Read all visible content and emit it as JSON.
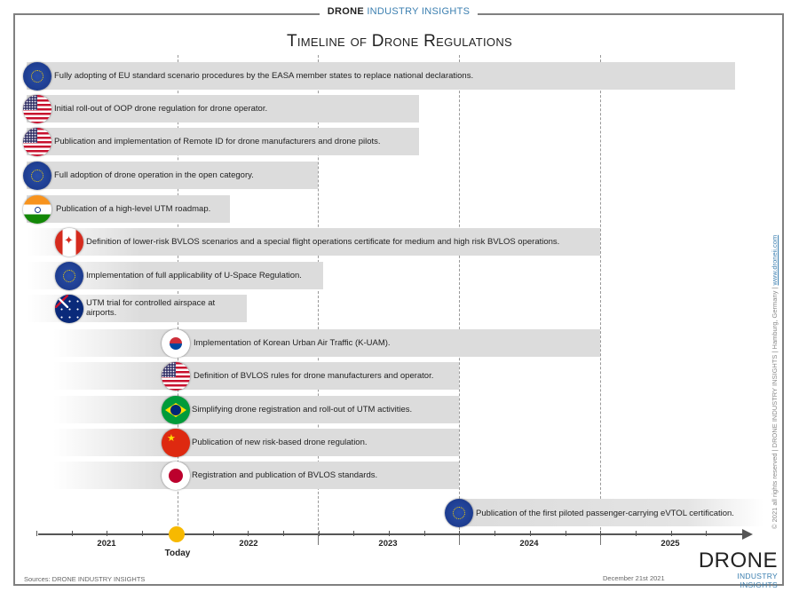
{
  "header": {
    "brand_bold": "DRONE",
    "brand_light": "INDUSTRY INSIGHTS",
    "title": "Timeline of Drone Regulations"
  },
  "events": [
    {
      "flag": "eu-flag",
      "text": "Fully adopting of EU standard scenario procedures by the EASA member states to replace national declarations."
    },
    {
      "flag": "us-flag",
      "text": "Initial roll-out of OOP drone regulation for drone operator."
    },
    {
      "flag": "us-flag",
      "text": "Publication and implementation of Remote ID for drone manufacturers and drone pilots."
    },
    {
      "flag": "eu-flag",
      "text": "Full adoption of drone operation in the open category."
    },
    {
      "flag": "india-flag",
      "text": "Publication of a high-level UTM roadmap."
    },
    {
      "flag": "canada-flag",
      "text": "Definition of lower-risk BVLOS scenarios and a special flight operations certificate for medium and high risk BVLOS operations."
    },
    {
      "flag": "eu-flag",
      "text": "Implementation of full applicability of U-Space Regulation."
    },
    {
      "flag": "australia-flag",
      "text": "UTM trial for controlled airspace at airports."
    },
    {
      "flag": "korea-flag",
      "text": "Implementation of Korean Urban Air Traffic (K-UAM)."
    },
    {
      "flag": "us-flag",
      "text": "Definition of BVLOS rules for drone manufacturers and operator."
    },
    {
      "flag": "brazil-flag",
      "text": "Simplifying drone registration and roll-out of UTM activities."
    },
    {
      "flag": "china-flag",
      "text": "Publication of new risk-based drone regulation."
    },
    {
      "flag": "japan-flag",
      "text": "Registration and publication of BVLOS standards."
    },
    {
      "flag": "eu-flag",
      "text": "Publication of the first piloted passenger-carrying eVTOL certification."
    }
  ],
  "axis": {
    "years": [
      "2021",
      "2022",
      "2023",
      "2024",
      "2025"
    ],
    "today_label": "Today",
    "today_color": "#f7b900"
  },
  "footer": {
    "sources": "Sources: DRONE INDUSTRY INSIGHTS",
    "date": "December 21st 2021",
    "logo_line1": "DRONE",
    "logo_line2": "INDUSTRY INSIGHTS",
    "side_text": "© 2021 all rights reserved | DRONE INDUSTRY INSIGHTS | Hamburg, Germany | ",
    "side_link": "www.droneii.com"
  },
  "colors": {
    "accent": "#3b7fb0",
    "bar": "#dcdcdc"
  }
}
